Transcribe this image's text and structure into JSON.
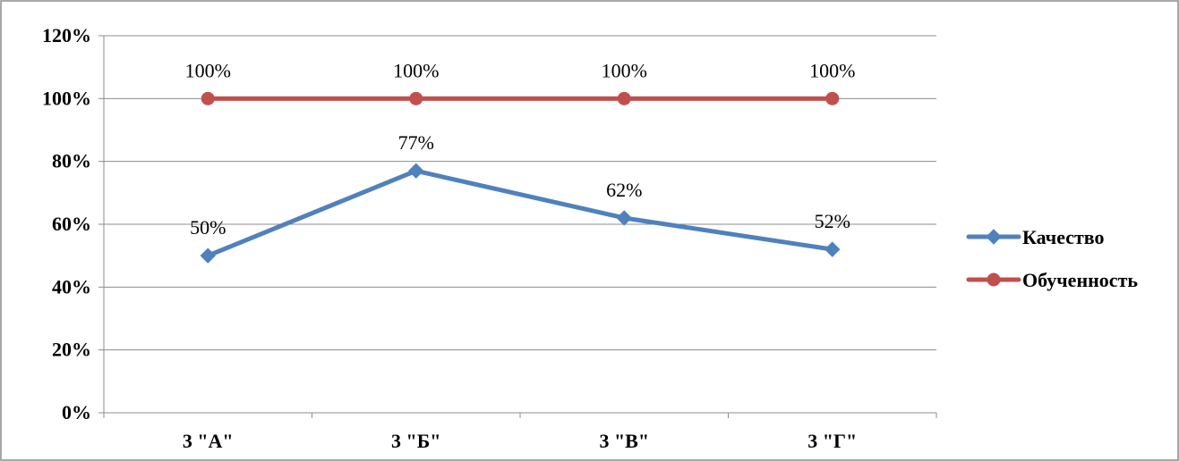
{
  "chart_data": {
    "type": "line",
    "title": "",
    "xlabel": "",
    "ylabel": "",
    "categories": [
      "3 \"А\"",
      "3 \"Б\"",
      "3 \"В\"",
      "3 \"Г\""
    ],
    "ylim": [
      0,
      1.2
    ],
    "yticks": [
      0,
      0.2,
      0.4,
      0.6,
      0.8,
      1.0,
      1.2
    ],
    "ytick_labels": [
      "0%",
      "20%",
      "40%",
      "60%",
      "80%",
      "100%",
      "120%"
    ],
    "grid": true,
    "legend_position": "right",
    "series": [
      {
        "name": "Качество",
        "values": [
          0.5,
          0.77,
          0.62,
          0.52
        ],
        "labels": [
          "50%",
          "77%",
          "62%",
          "52%"
        ],
        "color": "#4F81BD",
        "marker": "diamond"
      },
      {
        "name": "Обученность",
        "values": [
          1.0,
          1.0,
          1.0,
          1.0
        ],
        "labels": [
          "100%",
          "100%",
          "100%",
          "100%"
        ],
        "color": "#C0504D",
        "marker": "circle"
      }
    ]
  }
}
